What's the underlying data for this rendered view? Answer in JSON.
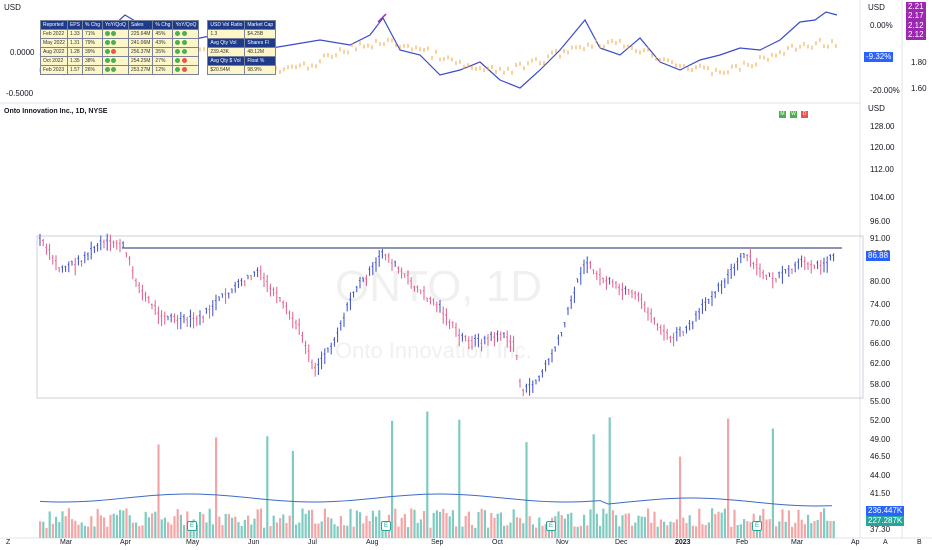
{
  "top_pane": {
    "currency": "USD",
    "left_scale": [
      "0.0000",
      "-0.5000"
    ],
    "right_scale": [
      "0.00%",
      "-20.00%"
    ],
    "far_right_scale": [
      "1.80",
      "1.60"
    ],
    "pct_tag": "-9.32%",
    "tags": [
      "2.21",
      "2.17",
      "2.12",
      "2.12"
    ]
  },
  "fund_table": {
    "headers": [
      "Reported",
      "EPS",
      "% Chg",
      "YoY/QoQ",
      "Sales",
      "% Chg",
      "YoY/QoQ"
    ],
    "rows": [
      [
        "Feb 2022",
        "1.33",
        "71%",
        "",
        "225.64M",
        "45%",
        ""
      ],
      [
        "May 2022",
        "1.31",
        "79%",
        "",
        "241.06M",
        "43%",
        ""
      ],
      [
        "Aug 2022",
        "1.28",
        "39%",
        "",
        "256.37M",
        "35%",
        ""
      ],
      [
        "Oct 2022",
        "1.35",
        "38%",
        "",
        "254.25M",
        "27%",
        ""
      ],
      [
        "Feb 2023",
        "1.57",
        "26%",
        "",
        "253.27M",
        "12%",
        ""
      ]
    ],
    "right_headers": [
      "USD Vol Ratio",
      "Market Cap"
    ],
    "right_rows": [
      [
        "1.3",
        "$4.25B"
      ],
      [
        "Avg Qty Vol",
        "Shares Fl"
      ],
      [
        "239.43K",
        "48.12M"
      ],
      [
        "Avg Qty $ Vol",
        "Float %"
      ],
      [
        "$20.54M",
        "98.9%"
      ]
    ]
  },
  "symbol_title": "Onto Innovation Inc., 1D, NYSE",
  "watermark_symbol": "ONTO, 1D",
  "watermark_name": "Onto Innovation Inc.",
  "mwd": [
    "M",
    "W",
    "D"
  ],
  "price_axis": {
    "currency": "USD",
    "labels": [
      "128.00",
      "120.00",
      "112.00",
      "104.00",
      "96.00",
      "91.00",
      "86.00",
      "80.00",
      "74.00",
      "70.00",
      "66.00",
      "62.00",
      "58.00",
      "55.00",
      "52.00",
      "49.00",
      "46.50",
      "44.00",
      "41.50",
      "39.50",
      "37.30"
    ]
  },
  "current_price": "86.88",
  "volume_tags": [
    "236.447K",
    "227.287K"
  ],
  "months": [
    "Mar",
    "Apr",
    "May",
    "Jun",
    "Jul",
    "Aug",
    "Sep",
    "Oct",
    "Nov",
    "Dec",
    "2023",
    "Feb",
    "Mar",
    "Ap"
  ],
  "earnings_marker": "E",
  "bottom_right": [
    "A",
    "B"
  ],
  "bottom_left": "Z",
  "colors": {
    "up": "#26a69a",
    "down": "#ef5350",
    "line": "#3b4bc8",
    "pct_tag": "#2962ff",
    "purple": "#9c27b0"
  }
}
